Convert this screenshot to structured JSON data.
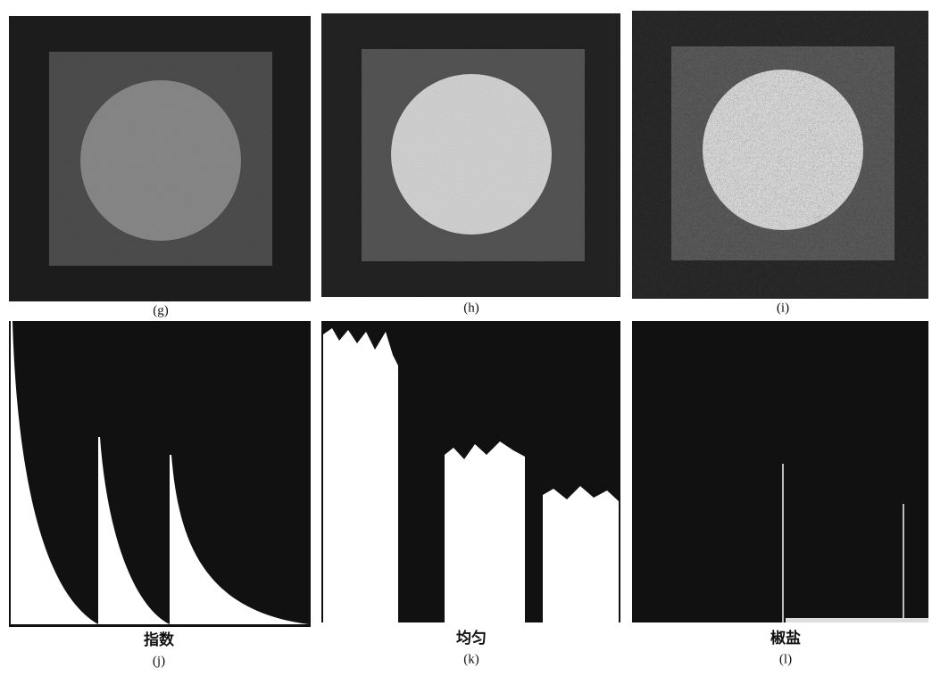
{
  "panels": [
    {
      "label": "(g)"
    },
    {
      "label": "(h)"
    },
    {
      "label": "(i)"
    },
    {
      "caption": "指数",
      "label": "(j)"
    },
    {
      "caption": "均匀",
      "label": "(k)"
    },
    {
      "caption": "椒盐",
      "label": "(l)"
    }
  ]
}
